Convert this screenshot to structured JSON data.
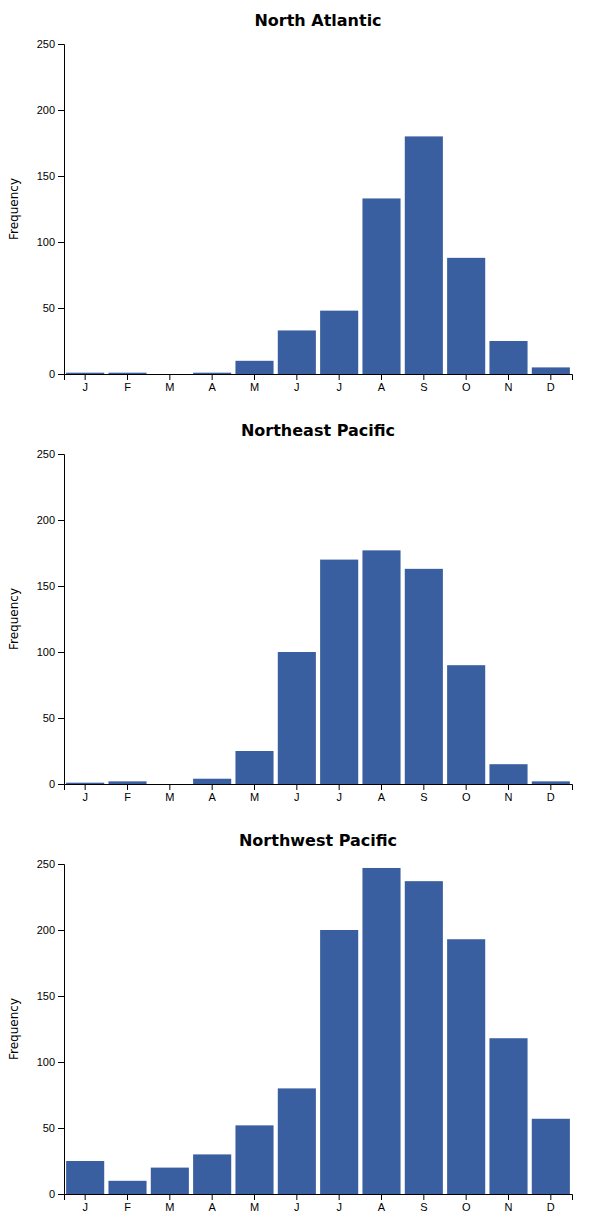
{
  "chart_data": [
    {
      "type": "bar",
      "title": "North Atlantic",
      "y_label": "Frequency",
      "categories": [
        "J",
        "F",
        "M",
        "A",
        "M",
        "J",
        "J",
        "A",
        "S",
        "O",
        "N",
        "D"
      ],
      "values": [
        1,
        1,
        0,
        1,
        10,
        33,
        48,
        133,
        180,
        88,
        25,
        5
      ],
      "color": "#3A5FA0",
      "ylim": [
        0,
        250
      ],
      "yticks": [
        0,
        50,
        100,
        150,
        200,
        250
      ],
      "grid": false
    },
    {
      "type": "bar",
      "title": "Northeast Pacific",
      "y_label": "Frequency",
      "categories": [
        "J",
        "F",
        "M",
        "A",
        "M",
        "J",
        "J",
        "A",
        "S",
        "O",
        "N",
        "D"
      ],
      "values": [
        1,
        2,
        0,
        4,
        25,
        100,
        170,
        177,
        163,
        90,
        15,
        2
      ],
      "color": "#3A5FA0",
      "ylim": [
        0,
        250
      ],
      "yticks": [
        0,
        50,
        100,
        150,
        200,
        250
      ],
      "grid": false
    },
    {
      "type": "bar",
      "title": "Northwest Pacific",
      "y_label": "Frequency",
      "categories": [
        "J",
        "F",
        "M",
        "A",
        "M",
        "J",
        "J",
        "A",
        "S",
        "O",
        "N",
        "D"
      ],
      "values": [
        25,
        10,
        20,
        30,
        52,
        80,
        200,
        247,
        237,
        193,
        118,
        57
      ],
      "color": "#3A5FA0",
      "ylim": [
        0,
        250
      ],
      "yticks": [
        0,
        50,
        100,
        150,
        200,
        250
      ],
      "grid": false
    }
  ]
}
